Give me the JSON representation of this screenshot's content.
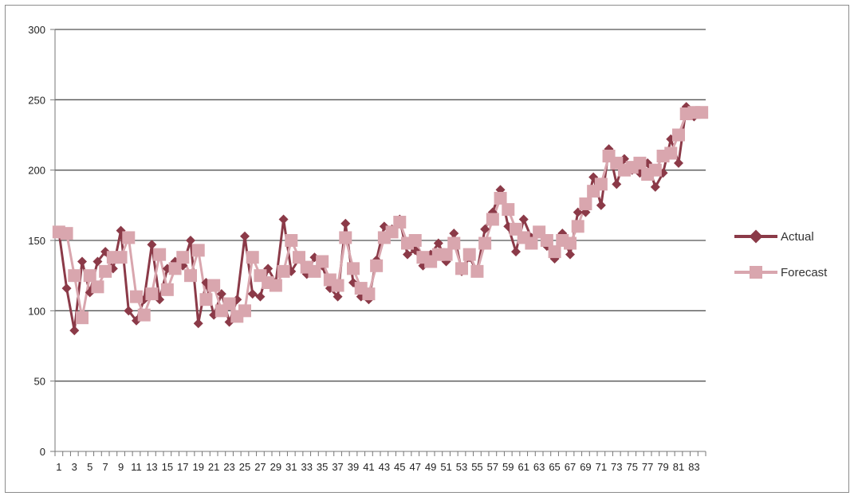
{
  "chart_data": {
    "type": "line",
    "title": "",
    "xlabel": "",
    "ylabel": "",
    "ylim": [
      0,
      300
    ],
    "y_ticks": [
      0,
      50,
      100,
      150,
      200,
      250,
      300
    ],
    "x_tick_labels": [
      "1",
      "3",
      "5",
      "7",
      "9",
      "11",
      "13",
      "15",
      "17",
      "19",
      "21",
      "23",
      "25",
      "27",
      "29",
      "31",
      "33",
      "35",
      "37",
      "39",
      "41",
      "43",
      "45",
      "47",
      "49",
      "51",
      "53",
      "55",
      "57",
      "59",
      "61",
      "63",
      "65",
      "67",
      "69",
      "71",
      "73",
      "75",
      "77",
      "79",
      "81",
      "83"
    ],
    "grid": "horizontal",
    "legend_position": "right",
    "x": [
      1,
      2,
      3,
      4,
      5,
      6,
      7,
      8,
      9,
      10,
      11,
      12,
      13,
      14,
      15,
      16,
      17,
      18,
      19,
      20,
      21,
      22,
      23,
      24,
      25,
      26,
      27,
      28,
      29,
      30,
      31,
      32,
      33,
      34,
      35,
      36,
      37,
      38,
      39,
      40,
      41,
      42,
      43,
      44,
      45,
      46,
      47,
      48,
      49,
      50,
      51,
      52,
      53,
      54,
      55,
      56,
      57,
      58,
      59,
      60,
      61,
      62,
      63,
      64,
      65,
      66,
      67,
      68,
      69,
      70,
      71,
      72,
      73,
      74,
      75,
      76,
      77,
      78,
      79,
      80,
      81,
      82,
      83,
      84
    ],
    "series": [
      {
        "name": "Actual",
        "color": "#8b3a48",
        "marker": "diamond",
        "values": [
          156,
          116,
          86,
          135,
          113,
          135,
          142,
          130,
          157,
          100,
          93,
          108,
          147,
          108,
          130,
          135,
          132,
          150,
          91,
          120,
          97,
          112,
          92,
          108,
          153,
          112,
          110,
          130,
          120,
          165,
          128,
          137,
          126,
          138,
          132,
          116,
          110,
          162,
          120,
          110,
          108,
          136,
          160,
          158,
          165,
          140,
          143,
          132,
          140,
          148,
          135,
          155,
          128,
          138,
          128,
          158,
          170,
          186,
          160,
          142,
          165,
          152,
          155,
          146,
          137,
          155,
          140,
          170,
          170,
          195,
          175,
          215,
          190,
          208,
          200,
          198,
          205,
          188,
          198,
          222,
          205,
          245,
          238,
          240
        ],
        "color_hint": "dark red"
      },
      {
        "name": "Forecast",
        "color": "#d9a6ae",
        "marker": "square",
        "values": [
          156,
          155,
          125,
          95,
          125,
          117,
          128,
          138,
          138,
          152,
          110,
          97,
          112,
          140,
          115,
          130,
          138,
          125,
          143,
          108,
          118,
          100,
          105,
          96,
          100,
          138,
          125,
          120,
          118,
          128,
          150,
          138,
          131,
          128,
          135,
          122,
          118,
          152,
          130,
          116,
          112,
          132,
          152,
          156,
          163,
          148,
          150,
          138,
          135,
          140,
          140,
          148,
          130,
          140,
          128,
          148,
          165,
          180,
          172,
          158,
          152,
          148,
          156,
          150,
          142,
          150,
          148,
          160,
          176,
          185,
          190,
          210,
          205,
          200,
          202,
          205,
          197,
          200,
          210,
          212,
          225,
          240,
          241,
          241
        ]
      }
    ]
  }
}
